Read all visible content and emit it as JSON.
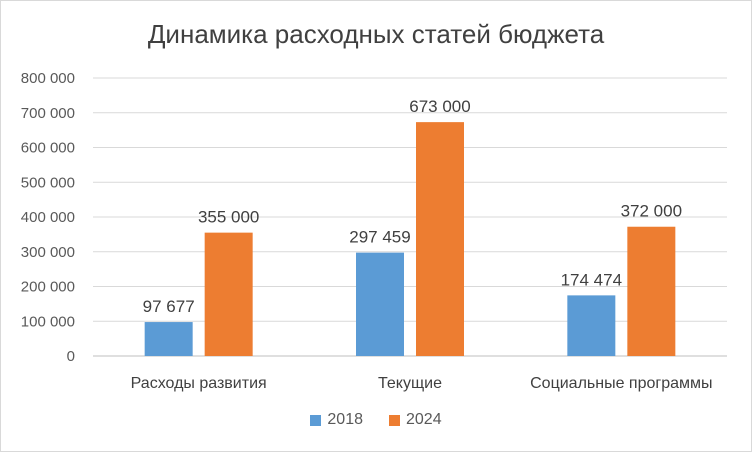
{
  "chart_data": {
    "type": "bar",
    "title": "Динамика расходных статей бюджета",
    "categories": [
      "Расходы развития",
      "Текущие",
      "Социальные программы"
    ],
    "series": [
      {
        "name": "2018",
        "values": [
          97677,
          297459,
          174474
        ],
        "labels": [
          "97 677",
          "297 459",
          "174 474"
        ],
        "color": "#5b9bd5"
      },
      {
        "name": "2024",
        "values": [
          355000,
          673000,
          372000
        ],
        "labels": [
          "355 000",
          "673 000",
          "372 000"
        ],
        "color": "#ed7d31"
      }
    ],
    "ylim": [
      0,
      800000
    ],
    "yticks": [
      {
        "value": 0,
        "label": "0"
      },
      {
        "value": 100000,
        "label": "100 000"
      },
      {
        "value": 200000,
        "label": "200 000"
      },
      {
        "value": 300000,
        "label": "300 000"
      },
      {
        "value": 400000,
        "label": "400 000"
      },
      {
        "value": 500000,
        "label": "500 000"
      },
      {
        "value": 600000,
        "label": "600 000"
      },
      {
        "value": 700000,
        "label": "700 000"
      },
      {
        "value": 800000,
        "label": "800 000"
      }
    ],
    "grid": true,
    "legend_position": "bottom"
  }
}
